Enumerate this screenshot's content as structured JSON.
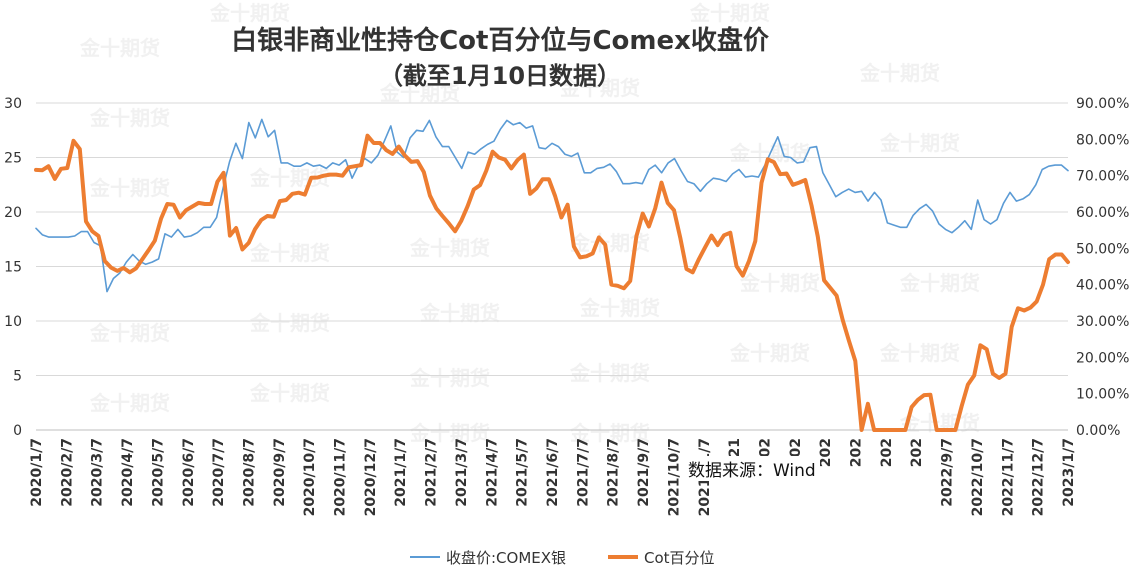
{
  "title_line1": "白银非商业性持仓Cot百分位与Comex收盘价",
  "title_line2": "（截至1月10日数据）",
  "source": "数据来源：Wind",
  "watermark": "金十期货",
  "chart_data": {
    "type": "line",
    "title": "白银非商业性持仓Cot百分位与Comex收盘价（截至1月10日数据）",
    "x_tick_labels": [
      "2020/1/7",
      "2020/2/7",
      "2020/3/7",
      "2020/4/7",
      "2020/5/7",
      "2020/6/7",
      "2020/7/7",
      "2020/8/7",
      "2020/9/7",
      "2020/10/7",
      "2020/11/7",
      "2020/12/7",
      "2021/1/7",
      "2021/2/7",
      "2021/3/7",
      "2021/4/7",
      "2021/5/7",
      "2021/6/7",
      "2021/7/7",
      "2021/8/7",
      "2021/9/7",
      "2021/10/7",
      "2021/11/7",
      "2021",
      "202",
      "202",
      "202",
      "202",
      "202",
      "202",
      "2022/9/7",
      "2022/10/7",
      "2022/11/7",
      "2022/12/7",
      "2023/1/7"
    ],
    "y_left": {
      "ticks": [
        0,
        5,
        10,
        15,
        20,
        25,
        30
      ],
      "ylim": [
        0,
        30
      ]
    },
    "y_right": {
      "ticks": [
        "0.00%",
        "10.00%",
        "20.00%",
        "30.00%",
        "40.00%",
        "50.00%",
        "60.00%",
        "70.00%",
        "80.00%",
        "90.00%"
      ],
      "ylim": [
        0,
        0.9
      ]
    },
    "grid": true,
    "legend_position": "bottom",
    "series": [
      {
        "name": "收盘价:COMEX银",
        "axis": "left",
        "color": "#5b9bd5",
        "values": [
          18.5,
          17.9,
          17.7,
          17.7,
          17.7,
          17.7,
          17.8,
          18.2,
          18.2,
          17.2,
          16.9,
          12.7,
          13.9,
          14.4,
          15.4,
          16.1,
          15.5,
          15.2,
          15.4,
          15.7,
          18.0,
          17.7,
          18.4,
          17.7,
          17.8,
          18.1,
          18.6,
          18.6,
          19.5,
          22.2,
          24.6,
          26.3,
          24.9,
          28.2,
          26.8,
          28.5,
          26.9,
          27.5,
          24.5,
          24.5,
          24.2,
          24.2,
          24.5,
          24.2,
          24.3,
          24.0,
          24.5,
          24.3,
          24.8,
          23.1,
          24.3,
          24.9,
          24.5,
          25.2,
          26.5,
          27.9,
          25.5,
          25.0,
          26.8,
          27.5,
          27.4,
          28.4,
          26.9,
          26.0,
          26.0,
          25.0,
          24.0,
          25.5,
          25.3,
          25.8,
          26.2,
          26.5,
          27.6,
          28.4,
          28.0,
          28.2,
          27.7,
          27.9,
          25.9,
          25.8,
          26.3,
          26.0,
          25.3,
          25.1,
          25.4,
          23.6,
          23.6,
          24.0,
          24.1,
          24.4,
          23.7,
          22.6,
          22.6,
          22.7,
          22.6,
          23.9,
          24.3,
          23.6,
          24.5,
          24.9,
          23.8,
          22.8,
          22.6,
          21.9,
          22.6,
          23.1,
          23.0,
          22.8,
          23.5,
          23.9,
          23.2,
          23.3,
          23.2,
          24.3,
          25.6,
          26.9,
          25.1,
          25.0,
          24.5,
          24.6,
          25.9,
          26.0,
          23.6,
          22.5,
          21.4,
          21.8,
          22.1,
          21.8,
          21.9,
          21.0,
          21.8,
          21.1,
          19.0,
          18.8,
          18.6,
          18.6,
          19.7,
          20.3,
          20.7,
          20.1,
          18.9,
          18.4,
          18.1,
          18.6,
          19.2,
          18.4,
          21.1,
          19.3,
          18.9,
          19.3,
          20.8,
          21.8,
          21.0,
          21.2,
          21.6,
          22.5,
          23.9,
          24.2,
          24.3,
          24.3,
          23.8
        ]
      },
      {
        "name": "Cot百分位",
        "axis": "right",
        "color": "#ed7d31",
        "values": [
          0.716,
          0.715,
          0.726,
          0.691,
          0.719,
          0.721,
          0.796,
          0.773,
          0.574,
          0.547,
          0.534,
          0.465,
          0.447,
          0.438,
          0.446,
          0.434,
          0.445,
          0.47,
          0.495,
          0.521,
          0.582,
          0.622,
          0.62,
          0.585,
          0.605,
          0.615,
          0.625,
          0.622,
          0.622,
          0.683,
          0.708,
          0.535,
          0.556,
          0.497,
          0.515,
          0.552,
          0.578,
          0.589,
          0.587,
          0.63,
          0.633,
          0.65,
          0.653,
          0.648,
          0.694,
          0.695,
          0.7,
          0.703,
          0.703,
          0.7,
          0.723,
          0.726,
          0.729,
          0.81,
          0.79,
          0.79,
          0.77,
          0.76,
          0.78,
          0.755,
          0.738,
          0.74,
          0.71,
          0.645,
          0.61,
          0.589,
          0.569,
          0.547,
          0.576,
          0.616,
          0.662,
          0.674,
          0.714,
          0.766,
          0.75,
          0.744,
          0.72,
          0.743,
          0.758,
          0.65,
          0.665,
          0.69,
          0.69,
          0.644,
          0.585,
          0.62,
          0.505,
          0.475,
          0.478,
          0.486,
          0.53,
          0.51,
          0.4,
          0.397,
          0.39,
          0.41,
          0.533,
          0.596,
          0.56,
          0.61,
          0.681,
          0.625,
          0.605,
          0.53,
          0.443,
          0.434,
          0.471,
          0.503,
          0.535,
          0.509,
          0.536,
          0.543,
          0.451,
          0.425,
          0.465,
          0.52,
          0.68,
          0.745,
          0.737,
          0.704,
          0.706,
          0.675,
          0.681,
          0.688,
          0.617,
          0.532,
          0.412,
          0.391,
          0.37,
          0.302,
          0.244,
          0.19,
          0.0,
          0.072,
          0.0,
          0.0,
          0.0,
          0.0,
          0.0,
          0.0,
          0.063,
          0.083,
          0.096,
          0.097,
          0.0,
          0.0,
          0.0,
          0.0,
          0.066,
          0.125,
          0.15,
          0.233,
          0.222,
          0.155,
          0.143,
          0.155,
          0.284,
          0.335,
          0.329,
          0.337,
          0.354,
          0.4,
          0.47,
          0.483,
          0.483,
          0.462
        ]
      }
    ]
  }
}
